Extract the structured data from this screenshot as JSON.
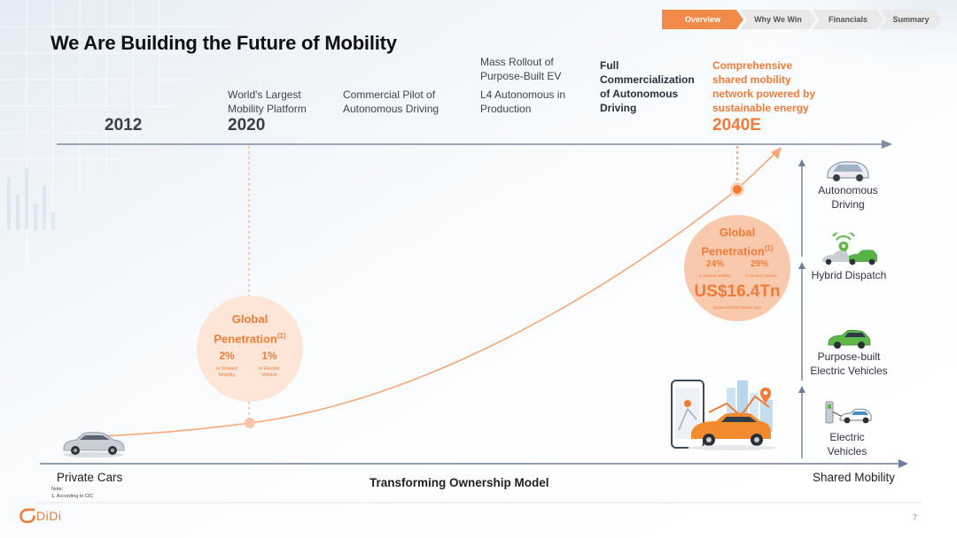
{
  "title": "We Are Building the Future of Mobility",
  "nav": {
    "tabs": [
      "Overview",
      "Why We Win",
      "Financials",
      "Summary"
    ],
    "active": "Overview",
    "accent": "#f28a49"
  },
  "timeline": {
    "y2012": "2012",
    "y2020": "2020",
    "y2040": "2040E",
    "m1_l1": "World's Largest",
    "m1_l2": "Mobility Platform",
    "m2_l1": "Commercial Pilot of",
    "m2_l2": "Autonomous Driving",
    "m3_l1": "Mass Rollout of",
    "m3_l2": "Purpose-Built EV",
    "m3_l3": "L4 Autonomous in",
    "m3_l4": "Production",
    "m4_l1": "Full",
    "m4_l2": "Commercialization",
    "m4_l3": "of Autonomous",
    "m4_l4": "Driving",
    "m5_l1": "Comprehensive",
    "m5_l2": "shared mobility",
    "m5_l3": "network powered by",
    "m5_l4": "sustainable energy"
  },
  "bubble2020": {
    "title1": "Global",
    "title2": "Penetration",
    "sup": "(1)",
    "p1": "2%",
    "p1_l1": "in Shared",
    "p1_l2": "Mobility",
    "p2": "1%",
    "p2_l1": "in Electric",
    "p2_l2": "Vehicle"
  },
  "bubble2040": {
    "title1": "Global",
    "title2": "Penetration",
    "sup": "(1)",
    "p1": "24%",
    "p1_l1": "in Shared Mobility",
    "p2": "29%",
    "p2_l1": "in Electric Vehicle",
    "market": "US$16.4Tn",
    "market_label": "Global Mobility Market Size"
  },
  "right_stack": {
    "autonomous_l1": "Autonomous",
    "autonomous_l2": "Driving",
    "hybrid": "Hybrid Dispatch",
    "purpose_l1": "Purpose-built",
    "purpose_l2": "Electric Vehicles",
    "ev_l1": "Electric",
    "ev_l2": "Vehicles"
  },
  "axis": {
    "left": "Private Cars",
    "center": "Transforming Ownership Model",
    "right": "Shared Mobility"
  },
  "note": {
    "heading": "Note:",
    "line1": "1.   According to CIC"
  },
  "footer": {
    "logo": "DiDi",
    "page": "7"
  },
  "colors": {
    "orange": "#f07c38",
    "axis": "#7d8ba3"
  }
}
